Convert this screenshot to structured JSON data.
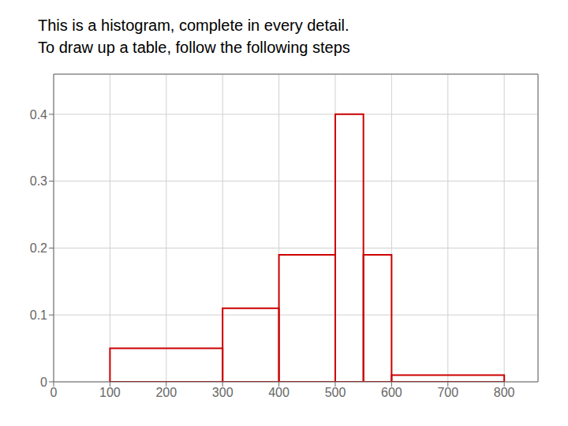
{
  "chart_data": {
    "type": "histogram",
    "title": "This is a histogram, complete in every detail.",
    "subtitle": "To draw up a table, follow the following steps",
    "bins": [
      100,
      300,
      400,
      500,
      550,
      600,
      800
    ],
    "values": [
      0.05,
      0.11,
      0.19,
      0.4,
      0.19,
      0.01
    ],
    "color": "#cc0000",
    "xlim": [
      0,
      860
    ],
    "ylim": [
      0,
      0.46
    ],
    "xticks": [
      0,
      100,
      200,
      300,
      400,
      500,
      600,
      700,
      800
    ],
    "yticks": [
      0,
      0.1,
      0.2,
      0.3,
      0.4
    ],
    "grid": true
  }
}
